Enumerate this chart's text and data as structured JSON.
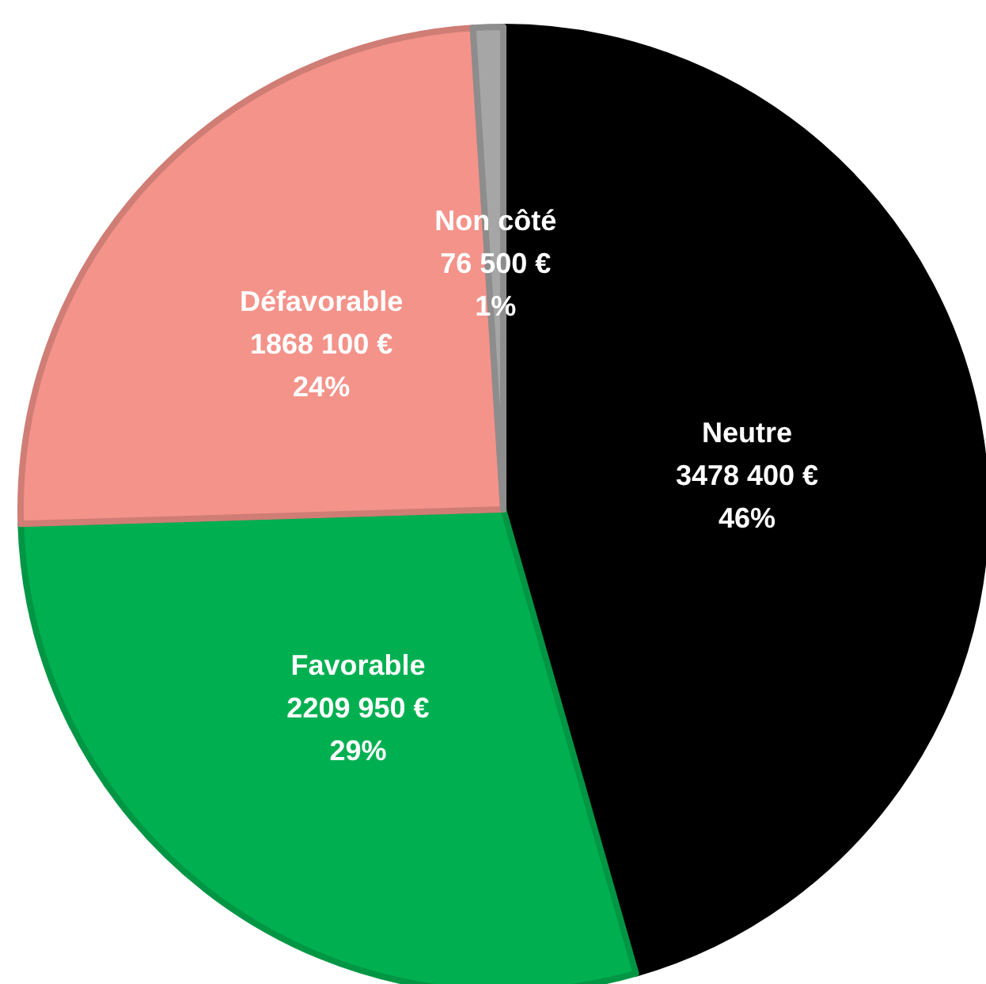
{
  "chart_data": {
    "type": "pie",
    "categories": [
      "Neutre",
      "Favorable",
      "Défavorable",
      "Non côté"
    ],
    "values": [
      3478400,
      2209950,
      1868100,
      76500
    ],
    "colors": [
      "#000000",
      "#00b050",
      "#f4938a",
      "#a6a6a6"
    ],
    "value_labels": [
      "3478 400 €\n46%",
      "2209 950 €\n29%",
      "1868 100 €\n24%",
      "76 500 €\n1%"
    ],
    "legend": false
  }
}
